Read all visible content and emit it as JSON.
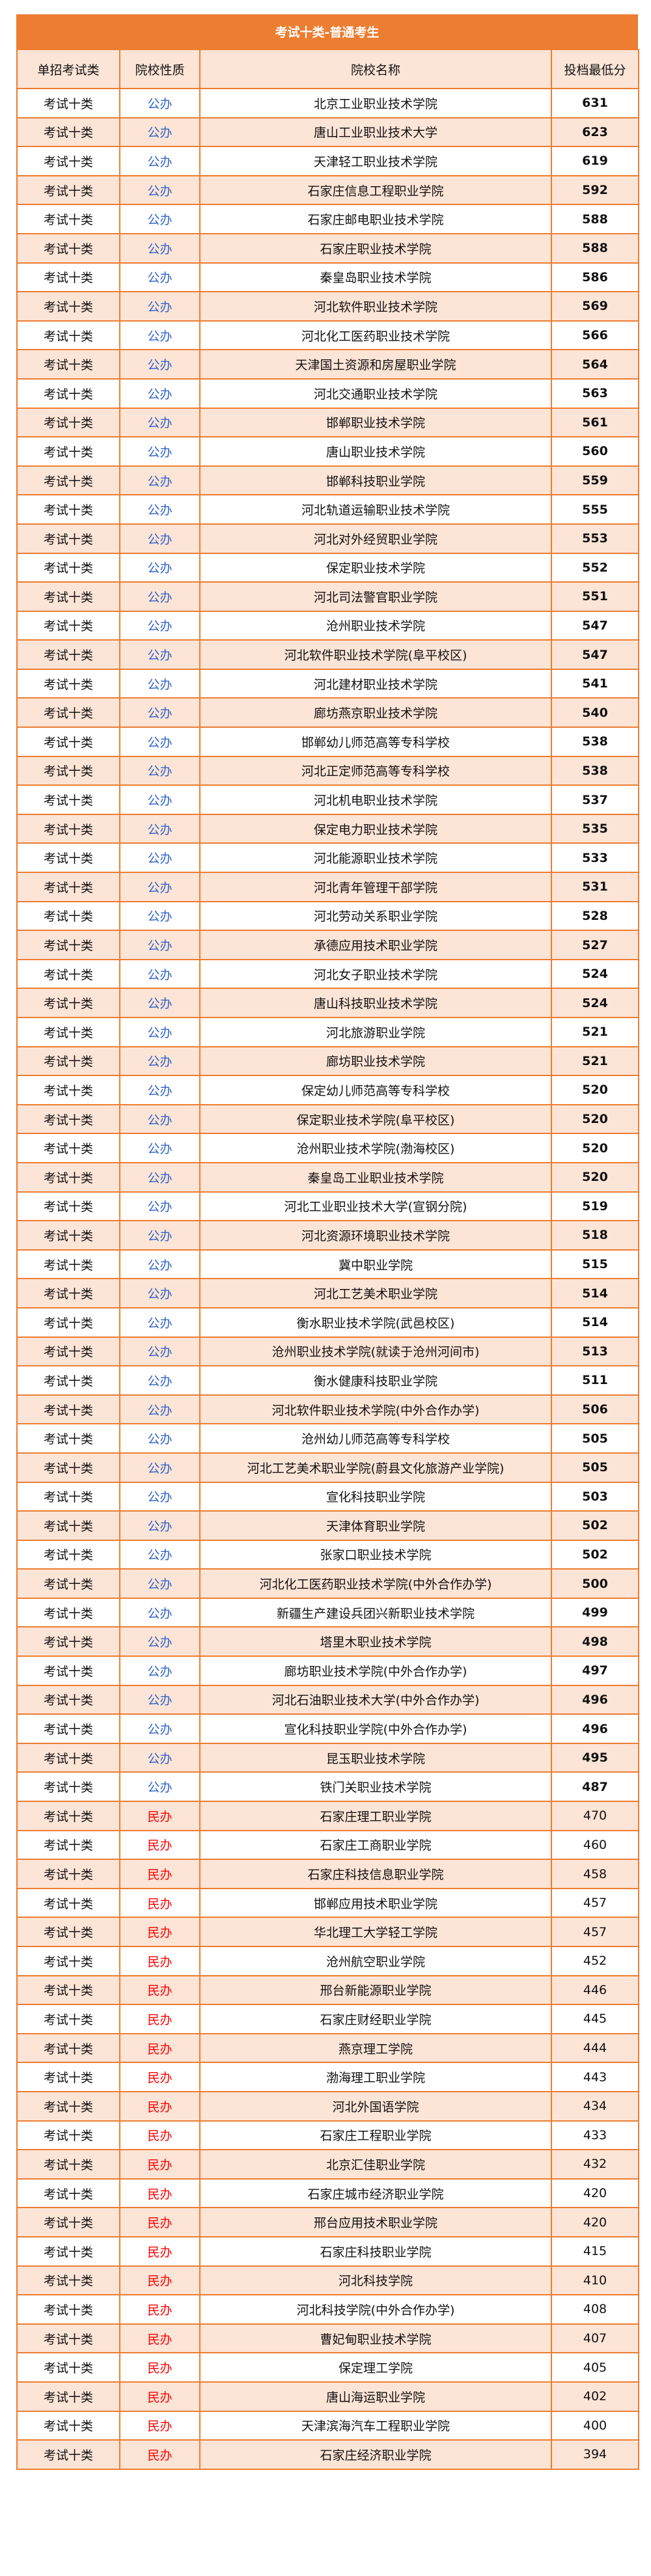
{
  "title": "考试十类-普通考生",
  "headers": [
    "单招考试类",
    "院校性质",
    "院校名称",
    "投档最低分"
  ],
  "colors": {
    "border": "#ed7d31",
    "stripe": "#fce4d6",
    "public": "#2f63c8",
    "private": "#ff0000"
  },
  "rows": [
    [
      "考试十类",
      "公办",
      "北京工业职业技术学院",
      "631"
    ],
    [
      "考试十类",
      "公办",
      "唐山工业职业技术大学",
      "623"
    ],
    [
      "考试十类",
      "公办",
      "天津轻工职业技术学院",
      "619"
    ],
    [
      "考试十类",
      "公办",
      "石家庄信息工程职业学院",
      "592"
    ],
    [
      "考试十类",
      "公办",
      "石家庄邮电职业技术学院",
      "588"
    ],
    [
      "考试十类",
      "公办",
      "石家庄职业技术学院",
      "588"
    ],
    [
      "考试十类",
      "公办",
      "秦皇岛职业技术学院",
      "586"
    ],
    [
      "考试十类",
      "公办",
      "河北软件职业技术学院",
      "569"
    ],
    [
      "考试十类",
      "公办",
      "河北化工医药职业技术学院",
      "566"
    ],
    [
      "考试十类",
      "公办",
      "天津国土资源和房屋职业学院",
      "564"
    ],
    [
      "考试十类",
      "公办",
      "河北交通职业技术学院",
      "563"
    ],
    [
      "考试十类",
      "公办",
      "邯郸职业技术学院",
      "561"
    ],
    [
      "考试十类",
      "公办",
      "唐山职业技术学院",
      "560"
    ],
    [
      "考试十类",
      "公办",
      "邯郸科技职业学院",
      "559"
    ],
    [
      "考试十类",
      "公办",
      "河北轨道运输职业技术学院",
      "555"
    ],
    [
      "考试十类",
      "公办",
      "河北对外经贸职业学院",
      "553"
    ],
    [
      "考试十类",
      "公办",
      "保定职业技术学院",
      "552"
    ],
    [
      "考试十类",
      "公办",
      "河北司法警官职业学院",
      "551"
    ],
    [
      "考试十类",
      "公办",
      "沧州职业技术学院",
      "547"
    ],
    [
      "考试十类",
      "公办",
      "河北软件职业技术学院(阜平校区)",
      "547"
    ],
    [
      "考试十类",
      "公办",
      "河北建材职业技术学院",
      "541"
    ],
    [
      "考试十类",
      "公办",
      "廊坊燕京职业技术学院",
      "540"
    ],
    [
      "考试十类",
      "公办",
      "邯郸幼儿师范高等专科学校",
      "538"
    ],
    [
      "考试十类",
      "公办",
      "河北正定师范高等专科学校",
      "538"
    ],
    [
      "考试十类",
      "公办",
      "河北机电职业技术学院",
      "537"
    ],
    [
      "考试十类",
      "公办",
      "保定电力职业技术学院",
      "535"
    ],
    [
      "考试十类",
      "公办",
      "河北能源职业技术学院",
      "533"
    ],
    [
      "考试十类",
      "公办",
      "河北青年管理干部学院",
      "531"
    ],
    [
      "考试十类",
      "公办",
      "河北劳动关系职业学院",
      "528"
    ],
    [
      "考试十类",
      "公办",
      "承德应用技术职业学院",
      "527"
    ],
    [
      "考试十类",
      "公办",
      "河北女子职业技术学院",
      "524"
    ],
    [
      "考试十类",
      "公办",
      "唐山科技职业技术学院",
      "524"
    ],
    [
      "考试十类",
      "公办",
      "河北旅游职业学院",
      "521"
    ],
    [
      "考试十类",
      "公办",
      "廊坊职业技术学院",
      "521"
    ],
    [
      "考试十类",
      "公办",
      "保定幼儿师范高等专科学校",
      "520"
    ],
    [
      "考试十类",
      "公办",
      "保定职业技术学院(阜平校区)",
      "520"
    ],
    [
      "考试十类",
      "公办",
      "沧州职业技术学院(渤海校区)",
      "520"
    ],
    [
      "考试十类",
      "公办",
      "秦皇岛工业职业技术学院",
      "520"
    ],
    [
      "考试十类",
      "公办",
      "河北工业职业技术大学(宣钢分院)",
      "519"
    ],
    [
      "考试十类",
      "公办",
      "河北资源环境职业技术学院",
      "518"
    ],
    [
      "考试十类",
      "公办",
      "冀中职业学院",
      "515"
    ],
    [
      "考试十类",
      "公办",
      "河北工艺美术职业学院",
      "514"
    ],
    [
      "考试十类",
      "公办",
      "衡水职业技术学院(武邑校区)",
      "514"
    ],
    [
      "考试十类",
      "公办",
      "沧州职业技术学院(就读于沧州河间市)",
      "513"
    ],
    [
      "考试十类",
      "公办",
      "衡水健康科技职业学院",
      "511"
    ],
    [
      "考试十类",
      "公办",
      "河北软件职业技术学院(中外合作办学)",
      "506"
    ],
    [
      "考试十类",
      "公办",
      "沧州幼儿师范高等专科学校",
      "505"
    ],
    [
      "考试十类",
      "公办",
      "河北工艺美术职业学院(蔚县文化旅游产业学院)",
      "505"
    ],
    [
      "考试十类",
      "公办",
      "宣化科技职业学院",
      "503"
    ],
    [
      "考试十类",
      "公办",
      "天津体育职业学院",
      "502"
    ],
    [
      "考试十类",
      "公办",
      "张家口职业技术学院",
      "502"
    ],
    [
      "考试十类",
      "公办",
      "河北化工医药职业技术学院(中外合作办学)",
      "500"
    ],
    [
      "考试十类",
      "公办",
      "新疆生产建设兵团兴新职业技术学院",
      "499"
    ],
    [
      "考试十类",
      "公办",
      "塔里木职业技术学院",
      "498"
    ],
    [
      "考试十类",
      "公办",
      "廊坊职业技术学院(中外合作办学)",
      "497"
    ],
    [
      "考试十类",
      "公办",
      "河北石油职业技术大学(中外合作办学)",
      "496"
    ],
    [
      "考试十类",
      "公办",
      "宣化科技职业学院(中外合作办学)",
      "496"
    ],
    [
      "考试十类",
      "公办",
      "昆玉职业技术学院",
      "495"
    ],
    [
      "考试十类",
      "公办",
      "铁门关职业技术学院",
      "487"
    ],
    [
      "考试十类",
      "民办",
      "石家庄理工职业学院",
      "470"
    ],
    [
      "考试十类",
      "民办",
      "石家庄工商职业学院",
      "460"
    ],
    [
      "考试十类",
      "民办",
      "石家庄科技信息职业学院",
      "458"
    ],
    [
      "考试十类",
      "民办",
      "邯郸应用技术职业学院",
      "457"
    ],
    [
      "考试十类",
      "民办",
      "华北理工大学轻工学院",
      "457"
    ],
    [
      "考试十类",
      "民办",
      "沧州航空职业学院",
      "452"
    ],
    [
      "考试十类",
      "民办",
      "邢台新能源职业学院",
      "446"
    ],
    [
      "考试十类",
      "民办",
      "石家庄财经职业学院",
      "445"
    ],
    [
      "考试十类",
      "民办",
      "燕京理工学院",
      "444"
    ],
    [
      "考试十类",
      "民办",
      "渤海理工职业学院",
      "443"
    ],
    [
      "考试十类",
      "民办",
      "河北外国语学院",
      "434"
    ],
    [
      "考试十类",
      "民办",
      "石家庄工程职业学院",
      "433"
    ],
    [
      "考试十类",
      "民办",
      "北京汇佳职业学院",
      "432"
    ],
    [
      "考试十类",
      "民办",
      "石家庄城市经济职业学院",
      "420"
    ],
    [
      "考试十类",
      "民办",
      "邢台应用技术职业学院",
      "420"
    ],
    [
      "考试十类",
      "民办",
      "石家庄科技职业学院",
      "415"
    ],
    [
      "考试十类",
      "民办",
      "河北科技学院",
      "410"
    ],
    [
      "考试十类",
      "民办",
      "河北科技学院(中外合作办学)",
      "408"
    ],
    [
      "考试十类",
      "民办",
      "曹妃甸职业技术学院",
      "407"
    ],
    [
      "考试十类",
      "民办",
      "保定理工学院",
      "405"
    ],
    [
      "考试十类",
      "民办",
      "唐山海运职业学院",
      "402"
    ],
    [
      "考试十类",
      "民办",
      "天津滨海汽车工程职业学院",
      "400"
    ],
    [
      "考试十类",
      "民办",
      "石家庄经济职业学院",
      "394"
    ]
  ]
}
